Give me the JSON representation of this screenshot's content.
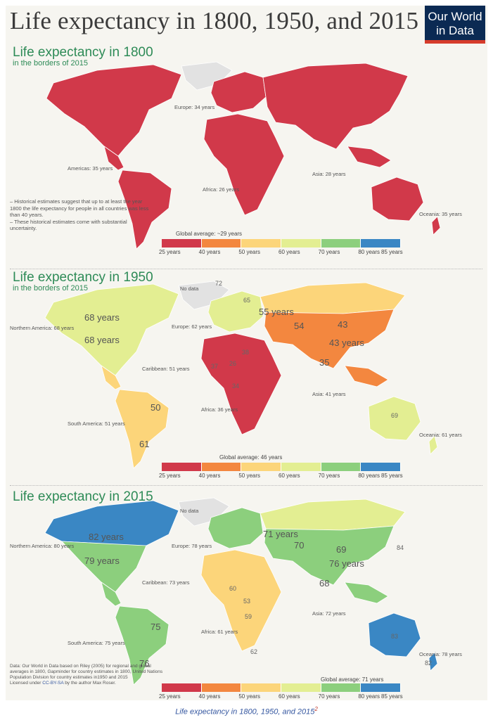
{
  "title": "Life expectancy in 1800, 1950, and 2015",
  "logo": {
    "line1": "Our World",
    "line2": "in Data"
  },
  "colors": {
    "scale": [
      "#d1394a",
      "#f3873f",
      "#fcd57a",
      "#e3ee92",
      "#8ccf7d",
      "#3a87c4"
    ],
    "nodata": "#e2e2e2",
    "ocean": "#f6f5f0"
  },
  "legend": {
    "ticks": [
      "25 years",
      "40 years",
      "50 years",
      "60 years",
      "70 years",
      "80 years",
      "85 years"
    ]
  },
  "panels": [
    {
      "title": "Life expectancy in 1800",
      "subtitle": "in the borders of 2015",
      "global_average": "Global average: ~29 years",
      "regions": [
        {
          "name": "Europe: 34 years",
          "color_index": 0
        },
        {
          "name": "Americas: 35 years",
          "color_index": 0
        },
        {
          "name": "Africa: 26 years",
          "color_index": 0
        },
        {
          "name": "Asia: 28 years",
          "color_index": 0
        },
        {
          "name": "Oceania: 35 years",
          "color_index": 0
        }
      ],
      "note": "– Historical estimates suggest that up to at least the year 1800 the life expectancy for people in all countries was less than 40 years.\n– These historical estimates come with substantial uncertainty."
    },
    {
      "title": "Life expectancy in 1950",
      "subtitle": "in the borders of 2015",
      "global_average": "Global average: 46 years",
      "no_data": "No data",
      "regions": [
        {
          "name": "Northern America: 68 years",
          "color_index": 3
        },
        {
          "name": "Europe: 62 years",
          "color_index": 3
        },
        {
          "name": "Caribbean: 51 years",
          "color_index": 2
        },
        {
          "name": "South America: 51 years",
          "color_index": 2
        },
        {
          "name": "Africa: 36 years",
          "color_index": 0
        },
        {
          "name": "Asia: 41 years",
          "color_index": 1
        },
        {
          "name": "Oceania: 61 years",
          "color_index": 3
        }
      ],
      "values": [
        "68 years",
        "68 years",
        "55 years",
        "54",
        "43",
        "43 years",
        "35",
        "37",
        "26",
        "50",
        "61",
        "69",
        "72",
        "65",
        "38",
        "34"
      ]
    },
    {
      "title": "Life expectancy in 2015",
      "subtitle": "",
      "global_average": "Global average: 71 years",
      "no_data": "No data",
      "regions": [
        {
          "name": "Northern America: 80 years",
          "color_index": 5
        },
        {
          "name": "Europe: 78 years",
          "color_index": 4
        },
        {
          "name": "Caribbean: 73 years",
          "color_index": 4
        },
        {
          "name": "South America: 75 years",
          "color_index": 4
        },
        {
          "name": "Africa: 61 years",
          "color_index": 3
        },
        {
          "name": "Asia: 72 years",
          "color_index": 4
        },
        {
          "name": "Oceania: 78 years",
          "color_index": 4
        }
      ],
      "values": [
        "82 years",
        "79 years",
        "71 years",
        "70",
        "69",
        "76 years",
        "68",
        "75",
        "76",
        "83",
        "82",
        "84",
        "59",
        "62",
        "60",
        "53"
      ],
      "data_note": "Data: Our World in Data based on Riley (2005) for regional and global averages in 1800, Gapminder for country estimates in 1800, United Nations Population Division for country estimates in1950 and 2015",
      "license_prefix": "Licensed under",
      "license_link": "CC-BY-SA",
      "license_suffix": "by the author Max Roser."
    }
  ],
  "caption": {
    "text": "Life expectancy in 1800, 1950, and 2015",
    "sup": "2"
  }
}
